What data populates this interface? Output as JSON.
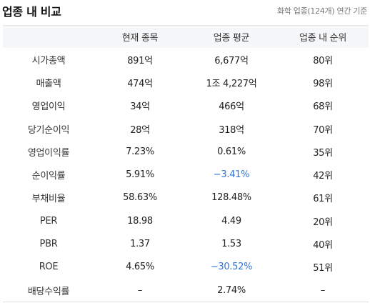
{
  "header": {
    "title": "업종 내 비교",
    "subtitle": "화학 업종(124개) 연간 기준"
  },
  "table": {
    "columns": [
      "",
      "현재 종목",
      "업종 평균",
      "업종 내 순위"
    ],
    "rows": [
      {
        "label": "시가총액",
        "current": "891억",
        "average": "6,677억",
        "rank": "80위",
        "neg": false
      },
      {
        "label": "매출액",
        "current": "474억",
        "average": "1조 4,227억",
        "rank": "98위",
        "neg": false
      },
      {
        "label": "영업이익",
        "current": "34억",
        "average": "466억",
        "rank": "68위",
        "neg": false
      },
      {
        "label": "당기순이익",
        "current": "28억",
        "average": "318억",
        "rank": "70위",
        "neg": false
      },
      {
        "label": "영업이익률",
        "current": "7.23%",
        "average": "0.61%",
        "rank": "35위",
        "neg": false
      },
      {
        "label": "순이익률",
        "current": "5.91%",
        "average": "−3.41%",
        "rank": "42위",
        "neg": true
      },
      {
        "label": "부채비율",
        "current": "58.63%",
        "average": "128.48%",
        "rank": "61위",
        "neg": false
      },
      {
        "label": "PER",
        "current": "18.98",
        "average": "4.49",
        "rank": "20위",
        "neg": false
      },
      {
        "label": "PBR",
        "current": "1.37",
        "average": "1.53",
        "rank": "40위",
        "neg": false
      },
      {
        "label": "ROE",
        "current": "4.65%",
        "average": "−30.52%",
        "rank": "51위",
        "neg": true
      },
      {
        "label": "배당수익률",
        "current": "–",
        "average": "2.74%",
        "rank": "–",
        "neg": false
      }
    ]
  },
  "colors": {
    "negative": "#2f73d9",
    "header_bg": "#f6f7f9"
  }
}
